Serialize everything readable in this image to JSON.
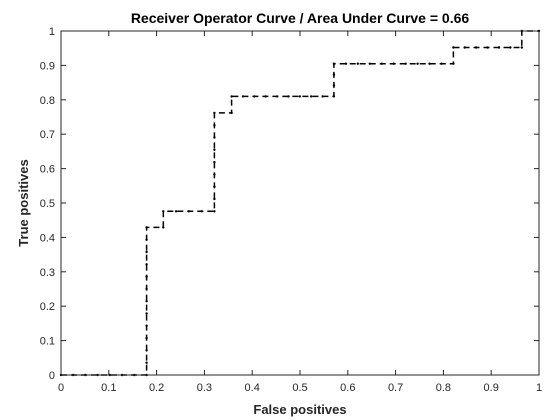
{
  "chart_data": {
    "type": "line",
    "title": "Receiver Operator Curve / Area Under Curve = 0.66",
    "xlabel": "False positives",
    "ylabel": "True positives",
    "xlim": [
      0,
      1
    ],
    "ylim": [
      0,
      1
    ],
    "grid": false,
    "xticks": [
      "0",
      "0.1",
      "0.2",
      "0.3",
      "0.4",
      "0.5",
      "0.6",
      "0.7",
      "0.8",
      "0.9",
      "1"
    ],
    "yticks": [
      "0",
      "0.1",
      "0.2",
      "0.3",
      "0.4",
      "0.5",
      "0.6",
      "0.7",
      "0.8",
      "0.9",
      "1"
    ],
    "series": [
      {
        "line_style": "dashed",
        "color": "#000000",
        "x": [
          0,
          0.179,
          0.179,
          0.214,
          0.214,
          0.321,
          0.321,
          0.357,
          0.357,
          0.571,
          0.571,
          0.821,
          0.821,
          0.964,
          0.964,
          1.0
        ],
        "y": [
          0,
          0,
          0.429,
          0.429,
          0.476,
          0.476,
          0.762,
          0.762,
          0.81,
          0.81,
          0.905,
          0.905,
          0.952,
          0.952,
          1.0,
          1.0
        ]
      }
    ]
  }
}
